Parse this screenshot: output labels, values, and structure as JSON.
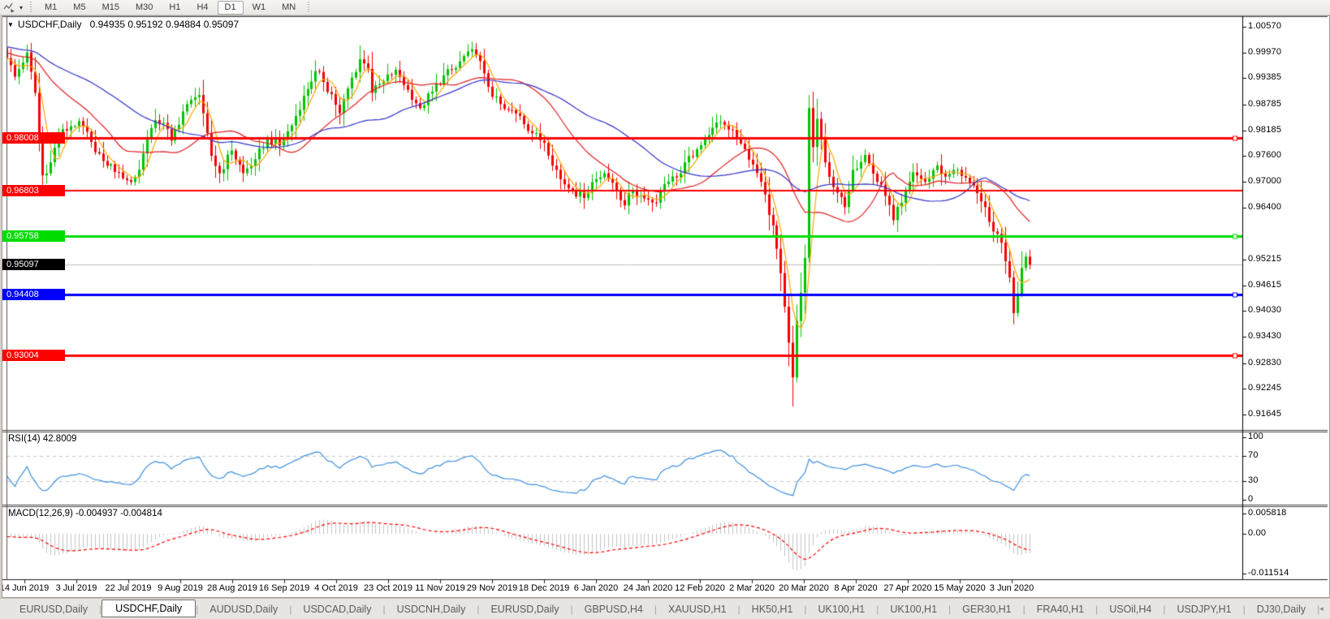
{
  "icons": {
    "cursor_tool": "crosshair-cursor-icon",
    "dropdown": "▾",
    "title_collapse": "▼",
    "tab_left": "◂",
    "tab_right": "▸"
  },
  "toolbar": {
    "timeframes": [
      "M1",
      "M5",
      "M15",
      "M30",
      "H1",
      "H4",
      "D1",
      "W1",
      "MN"
    ],
    "active_timeframe": "D1"
  },
  "chart": {
    "title_symbol": "USDCHF,Daily",
    "title_ohlc": "0.94935 0.95192 0.94884 0.95097",
    "open": "0.94935",
    "high": "0.95192",
    "low": "0.94884",
    "close": "0.95097"
  },
  "price_axis": {
    "ticks": [
      "1.00570",
      "0.99970",
      "0.99385",
      "0.98785",
      "0.98185",
      "0.97600",
      "0.97000",
      "0.96400",
      "0.95215",
      "0.94615",
      "0.94030",
      "0.93430",
      "0.92830",
      "0.92245",
      "0.91645"
    ]
  },
  "badges": [
    {
      "value": "0.98008",
      "price": 0.98008,
      "bg": "#FF0000"
    },
    {
      "value": "0.96803",
      "price": 0.96803,
      "bg": "#FF0000"
    },
    {
      "value": "0.95758",
      "price": 0.95758,
      "bg": "#00DC00"
    },
    {
      "value": "0.95097",
      "price": 0.95097,
      "bg": "#000000"
    },
    {
      "value": "0.94408",
      "price": 0.94408,
      "bg": "#0000FF"
    },
    {
      "value": "0.93004",
      "price": 0.93004,
      "bg": "#FF0000"
    }
  ],
  "levels": [
    {
      "price": 0.98008,
      "color": "#FF0000",
      "width": 3,
      "handle": true
    },
    {
      "price": 0.96803,
      "color": "#FF0000",
      "width": 2,
      "handle": false
    },
    {
      "price": 0.95758,
      "color": "#00DC00",
      "width": 3,
      "handle": true
    },
    {
      "price": 0.94408,
      "color": "#0000FF",
      "width": 3,
      "handle": true
    },
    {
      "price": 0.93004,
      "color": "#FF0000",
      "width": 3,
      "handle": true
    }
  ],
  "current_price": {
    "value": 0.95097,
    "line_color": "#C0C0C0"
  },
  "time_axis": {
    "ticks": [
      "14 Jun 2019",
      "3 Jul 2019",
      "22 Jul 2019",
      "9 Aug 2019",
      "28 Aug 2019",
      "16 Sep 2019",
      "4 Oct 2019",
      "23 Oct 2019",
      "11 Nov 2019",
      "29 Nov 2019",
      "18 Dec 2019",
      "6 Jan 2020",
      "24 Jan 2020",
      "12 Feb 2020",
      "2 Mar 2020",
      "20 Mar 2020",
      "8 Apr 2020",
      "27 Apr 2020",
      "15 May 2020",
      "3 Jun 2020"
    ]
  },
  "rsi": {
    "label": "RSI(14) 42.8009",
    "period": 14,
    "value": "42.8009",
    "axis_ticks": [
      "100",
      "70",
      "30",
      "0"
    ],
    "level_values": [
      100,
      70,
      30,
      0
    ],
    "dashed_levels": [
      70,
      30
    ],
    "color": "#3E8EDE"
  },
  "macd": {
    "label": "MACD(12,26,9) -0.004937 -0.004814",
    "fast": 12,
    "slow": 26,
    "signal_period": 9,
    "main_value": "-0.004937",
    "signal_value": "-0.004814",
    "axis_ticks": [
      "0.005818",
      "0.00",
      "-0.011514"
    ],
    "axis_values": [
      0.005818,
      0,
      -0.011514
    ],
    "histogram_color": "#C4C4C4",
    "signal_color": "#FF0000"
  },
  "tabs": {
    "items": [
      {
        "label": "EURUSD,Daily",
        "active": false
      },
      {
        "label": "USDCHF,Daily",
        "active": true
      },
      {
        "label": "AUDUSD,Daily",
        "active": false
      },
      {
        "label": "USDCAD,Daily",
        "active": false
      },
      {
        "label": "USDCNH,Daily",
        "active": false
      },
      {
        "label": "EURUSD,Daily",
        "active": false
      },
      {
        "label": "GBPUSD,H4",
        "active": false
      },
      {
        "label": "XAUUSD,H1",
        "active": false
      },
      {
        "label": "HK50,H1",
        "active": false
      },
      {
        "label": "UK100,H1",
        "active": false
      },
      {
        "label": "UK100,H1",
        "active": false
      },
      {
        "label": "GER30,H1",
        "active": false
      },
      {
        "label": "FRA40,H1",
        "active": false
      },
      {
        "label": "USOil,H4",
        "active": false
      },
      {
        "label": "USDJPY,H1",
        "active": false
      },
      {
        "label": "DJ30,Daily",
        "active": false
      }
    ]
  },
  "chart_data": {
    "type": "candlestick",
    "symbol": "USDCHF",
    "timeframe": "Daily",
    "candle_count": 256,
    "y_range": [
      0.91645,
      1.0057
    ],
    "bull_color": "#00C400",
    "bear_color": "#F20000",
    "close_waypoints": [
      [
        0,
        0.9985
      ],
      [
        2,
        0.9942
      ],
      [
        5,
        0.9998
      ],
      [
        7,
        0.9905
      ],
      [
        9,
        0.9715
      ],
      [
        11,
        0.9745
      ],
      [
        13,
        0.9808
      ],
      [
        16,
        0.9828
      ],
      [
        18,
        0.984
      ],
      [
        21,
        0.9792
      ],
      [
        24,
        0.9748
      ],
      [
        28,
        0.9722
      ],
      [
        31,
        0.97
      ],
      [
        33,
        0.9728
      ],
      [
        35,
        0.98
      ],
      [
        37,
        0.9842
      ],
      [
        39,
        0.9836
      ],
      [
        41,
        0.9795
      ],
      [
        44,
        0.9862
      ],
      [
        47,
        0.9895
      ],
      [
        48,
        0.99
      ],
      [
        49,
        0.9858
      ],
      [
        51,
        0.976
      ],
      [
        53,
        0.972
      ],
      [
        56,
        0.9772
      ],
      [
        59,
        0.972
      ],
      [
        62,
        0.9752
      ],
      [
        65,
        0.98
      ],
      [
        68,
        0.9784
      ],
      [
        71,
        0.983
      ],
      [
        74,
        0.9898
      ],
      [
        77,
        0.9955
      ],
      [
        79,
        0.993
      ],
      [
        81,
        0.9902
      ],
      [
        83,
        0.9858
      ],
      [
        86,
        0.994
      ],
      [
        88,
        0.9982
      ],
      [
        90,
        0.996
      ],
      [
        91,
        0.9905
      ],
      [
        94,
        0.9932
      ],
      [
        97,
        0.9958
      ],
      [
        100,
        0.9912
      ],
      [
        103,
        0.987
      ],
      [
        106,
        0.9908
      ],
      [
        109,
        0.9945
      ],
      [
        112,
        0.9962
      ],
      [
        115,
        1.0
      ],
      [
        117,
        0.9992
      ],
      [
        119,
        0.995
      ],
      [
        121,
        0.9896
      ],
      [
        124,
        0.9868
      ],
      [
        128,
        0.9852
      ],
      [
        131,
        0.9812
      ],
      [
        134,
        0.979
      ],
      [
        138,
        0.9706
      ],
      [
        141,
        0.968
      ],
      [
        144,
        0.9663
      ],
      [
        146,
        0.97
      ],
      [
        149,
        0.972
      ],
      [
        151,
        0.9698
      ],
      [
        154,
        0.9646
      ],
      [
        156,
        0.968
      ],
      [
        159,
        0.9662
      ],
      [
        162,
        0.9652
      ],
      [
        164,
        0.9695
      ],
      [
        167,
        0.971
      ],
      [
        169,
        0.9745
      ],
      [
        172,
        0.9775
      ],
      [
        175,
        0.9808
      ],
      [
        178,
        0.9838
      ],
      [
        181,
        0.982
      ],
      [
        183,
        0.9788
      ],
      [
        186,
        0.974
      ],
      [
        188,
        0.97
      ],
      [
        191,
        0.96
      ],
      [
        193,
        0.949
      ],
      [
        195,
        0.933
      ],
      [
        196,
        0.925
      ],
      [
        197,
        0.938
      ],
      [
        198,
        0.9445
      ],
      [
        199,
        0.9525
      ],
      [
        200,
        0.987
      ],
      [
        201,
        0.978
      ],
      [
        202,
        0.9845
      ],
      [
        203,
        0.98
      ],
      [
        204,
        0.9745
      ],
      [
        206,
        0.9688
      ],
      [
        209,
        0.9642
      ],
      [
        211,
        0.9728
      ],
      [
        214,
        0.9762
      ],
      [
        217,
        0.97
      ],
      [
        219,
        0.9668
      ],
      [
        221,
        0.9612
      ],
      [
        223,
        0.9652
      ],
      [
        226,
        0.9722
      ],
      [
        229,
        0.97
      ],
      [
        232,
        0.9738
      ],
      [
        234,
        0.9712
      ],
      [
        237,
        0.9728
      ],
      [
        240,
        0.9698
      ],
      [
        243,
        0.9655
      ],
      [
        245,
        0.9608
      ],
      [
        248,
        0.956
      ],
      [
        250,
        0.948
      ],
      [
        251,
        0.9398
      ],
      [
        252,
        0.9442
      ],
      [
        253,
        0.9502
      ],
      [
        254,
        0.9528
      ],
      [
        255,
        0.95097
      ]
    ],
    "wick_overrides": {
      "5": {
        "h": 1.0016
      },
      "9": {
        "l": 0.9693
      },
      "196": {
        "l": 0.9183
      },
      "200": {
        "h": 0.99
      },
      "251": {
        "l": 0.9372
      }
    },
    "moving_averages": [
      {
        "name": "ma-fast",
        "period": 5,
        "color": "#FFA500"
      },
      {
        "name": "ma-mid",
        "period": 22,
        "color": "#E02020"
      },
      {
        "name": "ma-slow",
        "period": 45,
        "color": "#3333CC"
      }
    ]
  }
}
